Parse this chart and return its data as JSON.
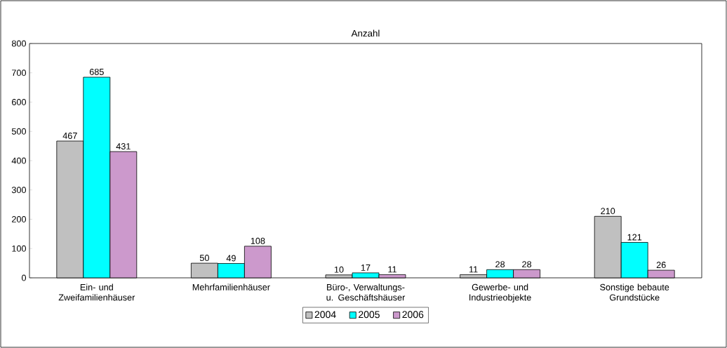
{
  "chart_data": {
    "type": "bar",
    "title": "Anzahl",
    "categories": [
      "Ein- und Zweifamilienhäuser",
      "Mehrfamilienhäuser",
      "Büro-, Verwaltungs- u. Geschäftshäuser",
      "Gewerbe- und Industrieobjekte",
      "Sonstige bebaute Grundstücke"
    ],
    "series": [
      {
        "name": "2004",
        "color": "#c0c0c0",
        "values": [
          467,
          50,
          10,
          11,
          210
        ]
      },
      {
        "name": "2005",
        "color": "#00ffff",
        "values": [
          685,
          49,
          17,
          28,
          121
        ]
      },
      {
        "name": "2006",
        "color": "#cc99cc",
        "values": [
          431,
          108,
          11,
          28,
          26
        ]
      }
    ],
    "ylim": [
      0,
      800
    ],
    "yticks": [
      0,
      100,
      200,
      300,
      400,
      500,
      600,
      700,
      800
    ],
    "data_labels": true,
    "legend": "bottom",
    "grid": false
  }
}
